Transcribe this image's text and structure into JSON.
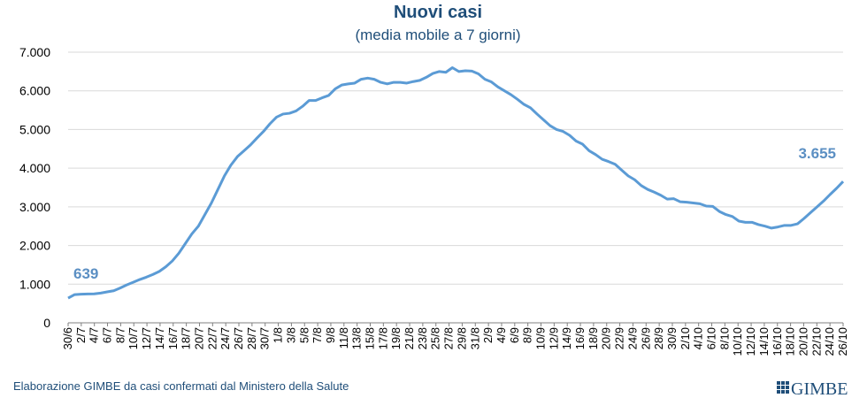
{
  "chart_data": {
    "type": "line",
    "title": "Nuovi casi",
    "subtitle": "(media mobile a 7 giorni)",
    "xlabel": "",
    "ylabel": "",
    "ylim": [
      0,
      7000
    ],
    "yticks": [
      "0",
      "1.000",
      "2.000",
      "3.000",
      "4.000",
      "5.000",
      "6.000",
      "7.000"
    ],
    "grid": "horizontal",
    "legend": "none",
    "line_color": "#5b9bd5",
    "x_labels": [
      "30/6",
      "2/7",
      "4/7",
      "6/7",
      "8/7",
      "10/7",
      "12/7",
      "14/7",
      "16/7",
      "18/7",
      "20/7",
      "22/7",
      "24/7",
      "26/7",
      "28/7",
      "30/7",
      "1/8",
      "3/8",
      "5/8",
      "7/8",
      "9/8",
      "11/8",
      "13/8",
      "15/8",
      "17/8",
      "19/8",
      "21/8",
      "23/8",
      "25/8",
      "27/8",
      "29/8",
      "31/8",
      "2/9",
      "4/9",
      "6/9",
      "8/9",
      "10/9",
      "12/9",
      "14/9",
      "16/9",
      "18/9",
      "20/9",
      "22/9",
      "24/9",
      "26/9",
      "28/9",
      "30/9",
      "2/10",
      "4/10",
      "6/10",
      "8/10",
      "10/10",
      "12/10",
      "14/10",
      "16/10",
      "18/10",
      "20/10",
      "22/10",
      "24/10",
      "26/10"
    ],
    "series": [
      {
        "values": [
          639,
          730,
          740,
          745,
          750,
          770,
          800,
          830,
          900,
          980,
          1050,
          1120,
          1180,
          1250,
          1330,
          1450,
          1600,
          1800,
          2050,
          2300,
          2500,
          2800,
          3100,
          3450,
          3800,
          4080,
          4300,
          4450,
          4600,
          4780,
          4950,
          5150,
          5320,
          5400,
          5420,
          5480,
          5600,
          5750,
          5750,
          5820,
          5880,
          6050,
          6150,
          6180,
          6200,
          6300,
          6330,
          6300,
          6220,
          6180,
          6220,
          6220,
          6200,
          6240,
          6270,
          6350,
          6450,
          6500,
          6480,
          6600,
          6500,
          6520,
          6510,
          6440,
          6300,
          6230,
          6100,
          6000,
          5900,
          5780,
          5650,
          5560,
          5400,
          5250,
          5100,
          5000,
          4950,
          4850,
          4700,
          4620,
          4450,
          4350,
          4230,
          4170,
          4100,
          3950,
          3800,
          3700,
          3550,
          3450,
          3380,
          3300,
          3200,
          3210,
          3130,
          3120,
          3100,
          3080,
          3020,
          3010,
          2880,
          2800,
          2750,
          2630,
          2600,
          2600,
          2540,
          2500,
          2450,
          2480,
          2520,
          2520,
          2560,
          2700,
          2850,
          3000,
          3150,
          3320,
          3480,
          3655
        ]
      }
    ],
    "annotations": [
      {
        "label": "639",
        "at": "first"
      },
      {
        "label": "3.655",
        "at": "last"
      }
    ]
  },
  "footer": {
    "source": "Elaborazione GIMBE da casi confermati dal Ministero della Salute",
    "logo": "GIMBE"
  }
}
